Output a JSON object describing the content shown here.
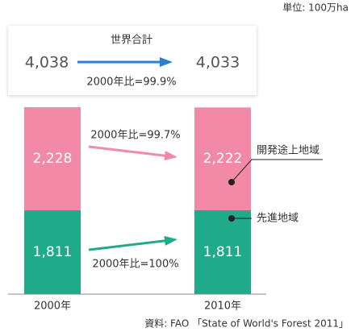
{
  "chart_data": {
    "type": "stacked-bar",
    "unit": "単位: 100万ha",
    "categories": [
      "2000年",
      "2010年"
    ],
    "series": [
      {
        "name": "先進地域",
        "color": "#1faa8a",
        "values": [
          1811,
          1811
        ],
        "value_labels": [
          "1,811",
          "1,811"
        ],
        "change": "2000年比=100%"
      },
      {
        "name": "開発途上地域",
        "color": "#f28aa7",
        "values": [
          2228,
          2222
        ],
        "value_labels": [
          "2,228",
          "2,222"
        ],
        "change": "2000年比=99.7%"
      }
    ],
    "total": {
      "label": "世界合計",
      "color": "#2a7fd4",
      "values": [
        4038,
        4033
      ],
      "value_labels": [
        "4,038",
        "4,033"
      ],
      "change": "2000年比=99.9%"
    },
    "source": "資料: FAO 「State of World's Forest 2011」"
  }
}
